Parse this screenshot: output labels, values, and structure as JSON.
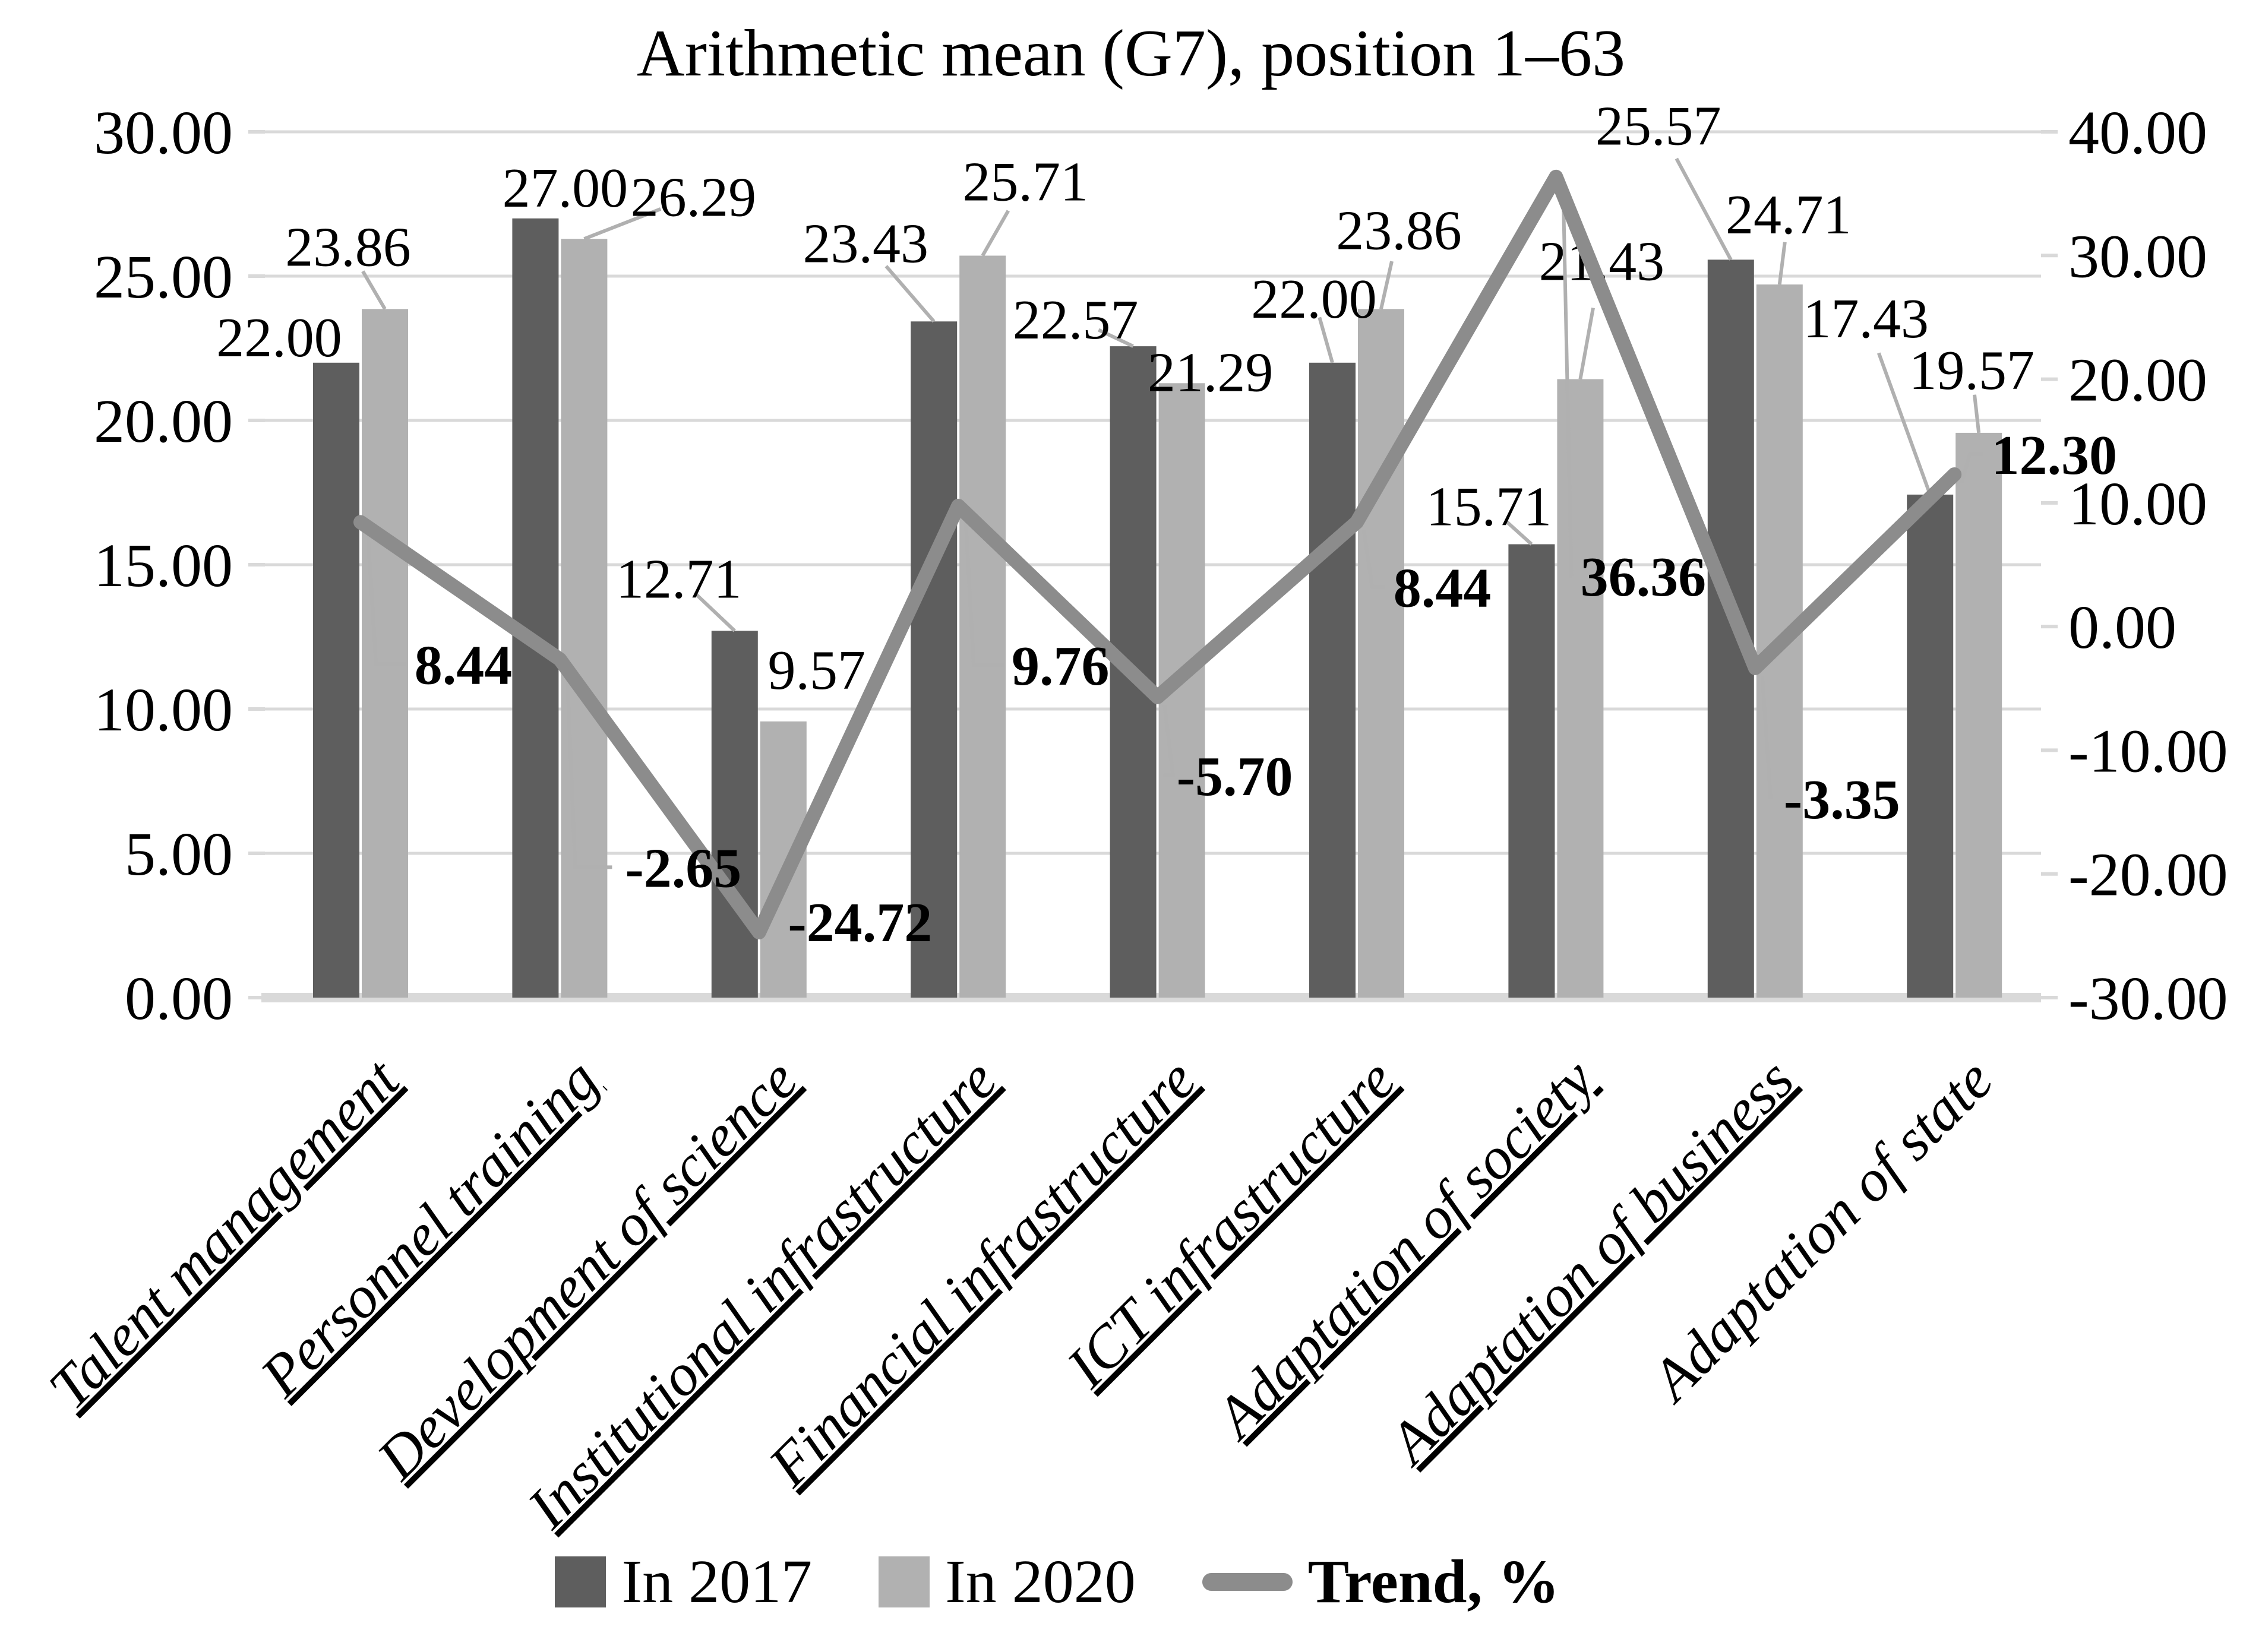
{
  "chart": {
    "title": "Arithmetic mean (G7), position 1–63",
    "colors": {
      "bar2017": "#5e5e5e",
      "bar2020": "#b1b1b1",
      "trend": "#8c8c8c",
      "grid": "#d9d9d9",
      "leader": "#b0b0b0",
      "text": "#000000"
    },
    "left_axis": {
      "ticks": [
        "30.00",
        "25.00",
        "20.00",
        "15.00",
        "10.00",
        "5.00",
        "0.00"
      ]
    },
    "right_axis": {
      "ticks": [
        "40.00",
        "30.00",
        "20.00",
        "10.00",
        "0.00",
        "-10.00",
        "-20.00",
        "-30.00"
      ]
    },
    "legend": [
      {
        "label": "In 2017"
      },
      {
        "label": "In 2020"
      },
      {
        "label": "Trend, %"
      }
    ]
  },
  "chart_data": {
    "type": "bar",
    "subtype": "grouped-bars-with-line",
    "title": "Arithmetic mean (G7), position 1–63",
    "categories": [
      "Talent management",
      "Personnel training",
      "Development of science",
      "Institutional infrastructure",
      "Financial infrastructure",
      "ICT infrastructure",
      "Adaptation of society",
      "Adaptation of business",
      "Adaptation of state"
    ],
    "series": [
      {
        "name": "In 2017",
        "type": "bar",
        "axis": "left",
        "values": [
          22.0,
          27.0,
          12.71,
          23.43,
          22.57,
          22.0,
          15.71,
          25.57,
          17.43
        ],
        "value_labels": [
          "22.00",
          "27.00",
          "12.71",
          "23.43",
          "22.57",
          "22.00",
          "15.71",
          "25.57",
          "17.43"
        ]
      },
      {
        "name": "In 2020",
        "type": "bar",
        "axis": "left",
        "values": [
          23.86,
          26.29,
          9.57,
          25.71,
          21.29,
          23.86,
          21.43,
          24.71,
          19.57
        ],
        "value_labels": [
          "23.86",
          "26.29",
          "9.57",
          "25.71",
          "21.29",
          "23.86",
          "21.43",
          "24.71",
          "19.57"
        ]
      },
      {
        "name": "Trend, %",
        "type": "line",
        "axis": "right",
        "values": [
          8.44,
          -2.65,
          -24.72,
          9.76,
          -5.7,
          8.44,
          36.36,
          -3.35,
          12.3
        ],
        "value_labels": [
          "8.44",
          "-2.65",
          "-24.72",
          "9.76",
          "-5.70",
          "8.44",
          "36.36",
          "-3.35",
          "12.30"
        ]
      }
    ],
    "left_ylim": [
      0,
      30
    ],
    "right_ylim": [
      -30,
      40
    ],
    "left_tick_step": 5,
    "right_tick_step": 10,
    "grid": true,
    "legend_position": "bottom"
  }
}
